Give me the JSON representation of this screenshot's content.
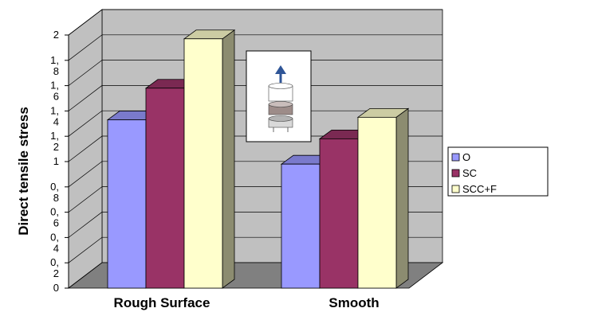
{
  "chart_data": {
    "type": "bar",
    "categories": [
      "Rough Surface",
      "Smooth"
    ],
    "series": [
      {
        "name": "O",
        "values": [
          1.33,
          0.98
        ],
        "color": "#9999ff"
      },
      {
        "name": "SC",
        "values": [
          1.58,
          1.18
        ],
        "color": "#993366"
      },
      {
        "name": "SCC+F",
        "values": [
          1.97,
          1.35
        ],
        "color": "#ffffcc"
      }
    ],
    "ylabel": "Direct tensile stress",
    "xlabel": "",
    "ylim": [
      0,
      2
    ],
    "y_tick_labels": [
      "0",
      "0,\n2",
      "0,\n4",
      "0,\n6",
      "0,\n8",
      "1",
      "1,\n2",
      "1,\n4",
      "1,\n6",
      "1,\n8",
      "2"
    ],
    "grid": true,
    "legend_position": "right",
    "inset_image": "tensile-test-specimen-icon"
  }
}
